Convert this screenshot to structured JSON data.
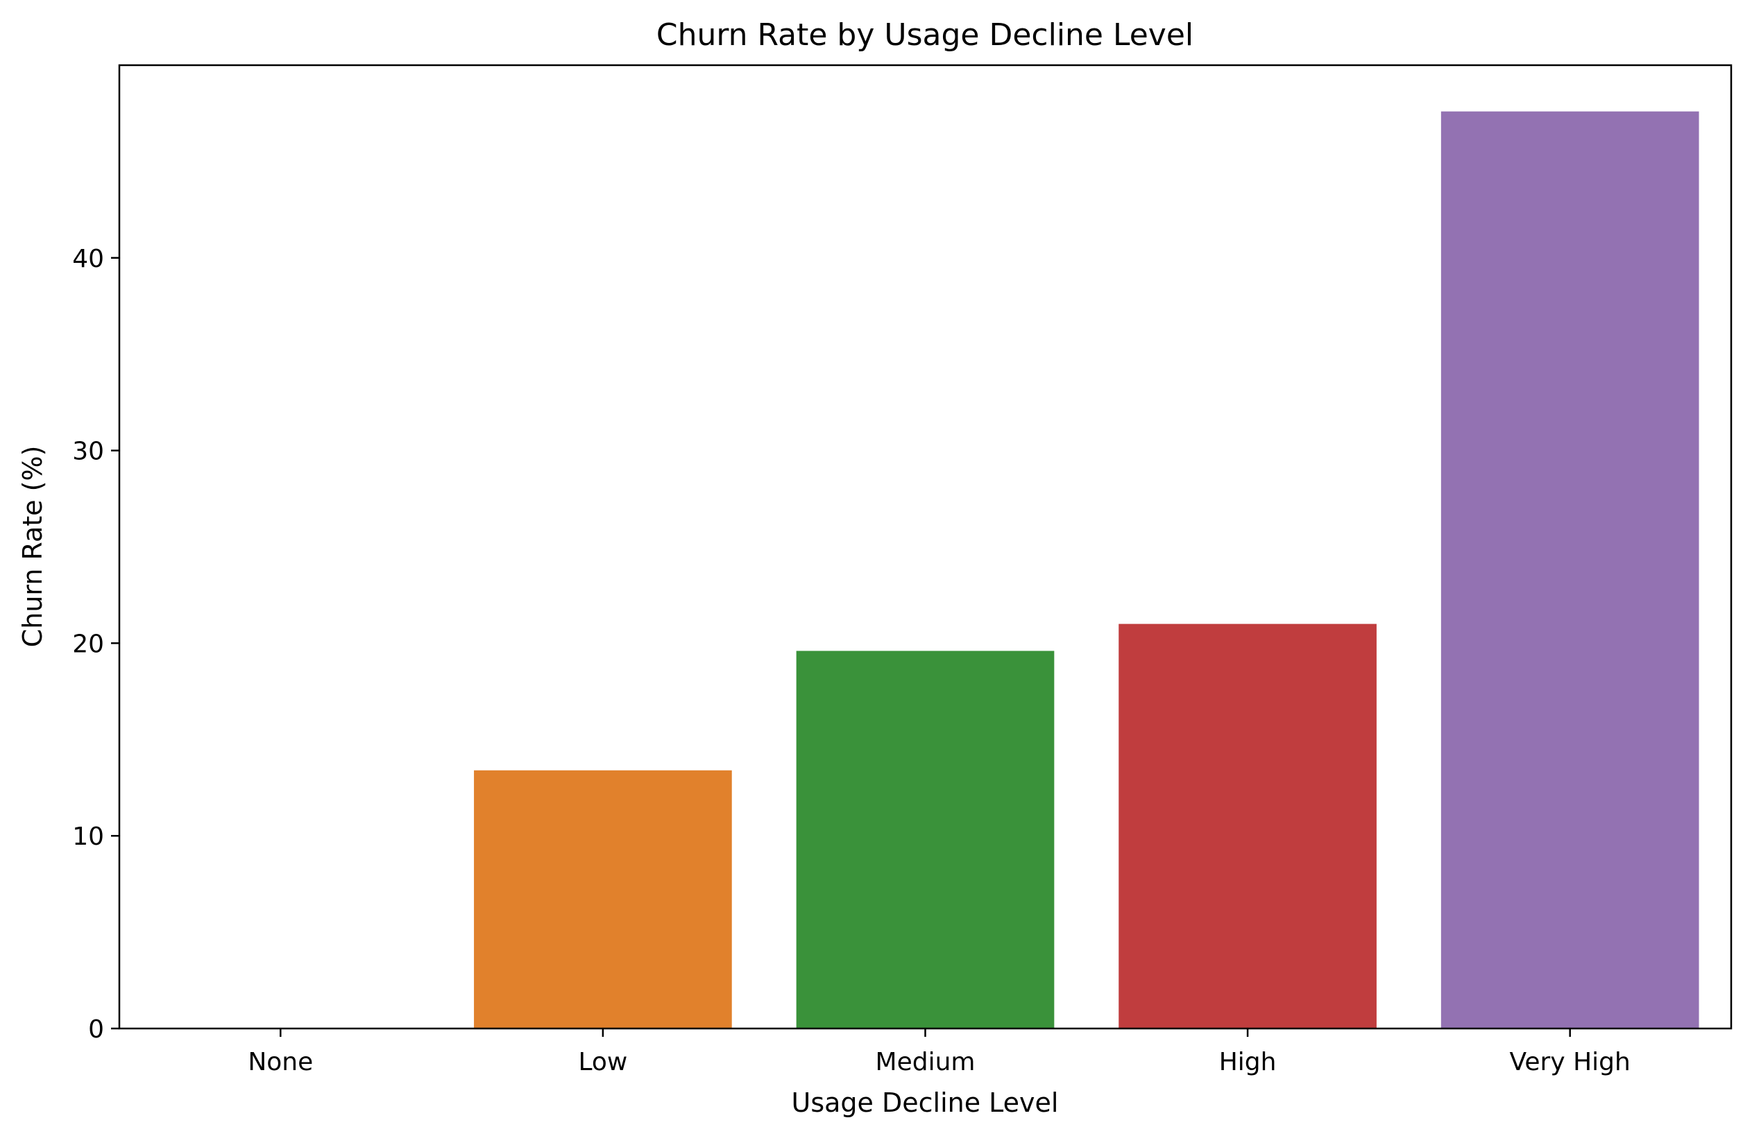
{
  "chart_data": {
    "type": "bar",
    "title": "Churn Rate by Usage Decline Level",
    "xlabel": "Usage Decline Level",
    "ylabel": "Churn Rate (%)",
    "categories": [
      "None",
      "Low",
      "Medium",
      "High",
      "Very High"
    ],
    "values": [
      0,
      13.4,
      19.6,
      21.0,
      47.6
    ],
    "colors": [
      "#1f77b4",
      "#e1812c",
      "#3a923a",
      "#c03d3e",
      "#9372b2"
    ],
    "ylim": [
      0,
      50
    ],
    "yticks": [
      0,
      10,
      20,
      30,
      40
    ],
    "grid": false,
    "legend": false
  }
}
